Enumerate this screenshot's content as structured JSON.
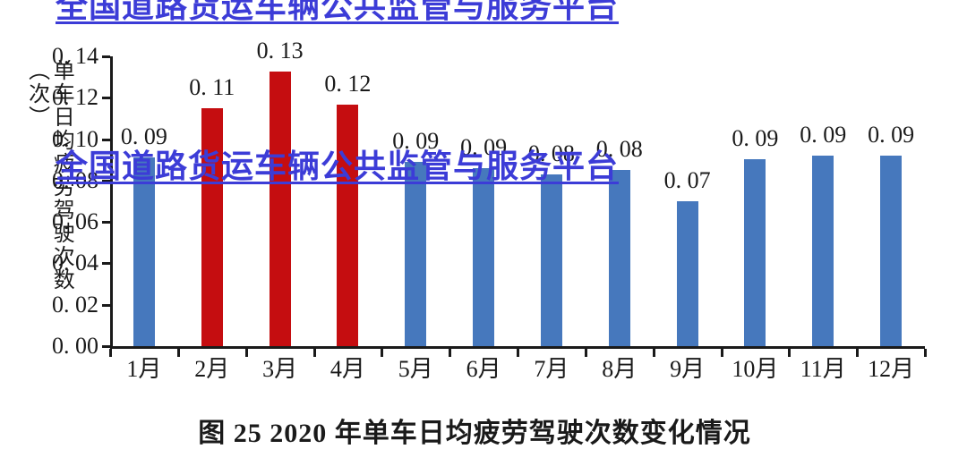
{
  "watermark": {
    "text": "全国道路货运车辆公共监管与服务平台",
    "color": "#3c3cd7"
  },
  "caption": "图 25 2020 年单车日均疲劳驾驶次数变化情况",
  "chart_data": {
    "type": "bar",
    "title": "图 25 2020 年单车日均疲劳驾驶次数变化情况",
    "xlabel": "",
    "ylabel": "单车日均疲劳驾驶次数（次）",
    "categories": [
      "1月",
      "2月",
      "3月",
      "4月",
      "5月",
      "6月",
      "7月",
      "8月",
      "9月",
      "10月",
      "11月",
      "12月"
    ],
    "values": [
      0.09,
      0.11,
      0.13,
      0.12,
      0.09,
      0.09,
      0.08,
      0.08,
      0.07,
      0.09,
      0.09,
      0.09
    ],
    "value_labels": [
      "0. 09",
      "0. 11",
      "0. 13",
      "0. 12",
      "0. 09",
      "0. 09",
      "0. 08",
      "0. 08",
      "0. 07",
      "0. 09",
      "0. 09",
      "0. 09"
    ],
    "bar_heights_as_drawn": [
      0.091,
      0.115,
      0.1325,
      0.1165,
      0.089,
      0.086,
      0.083,
      0.085,
      0.07,
      0.0905,
      0.092,
      0.092
    ],
    "red_bar_indices": [
      1,
      2,
      3
    ],
    "ylim": [
      0,
      0.14
    ],
    "ytick_step": 0.02,
    "ytick_labels": [
      "0. 00",
      "0. 02",
      "0. 04",
      "0. 06",
      "0. 08",
      "0. 10",
      "0. 12",
      "0. 14"
    ],
    "grid": false,
    "legend": null,
    "colors": {
      "bar_blue": "#4678bd",
      "bar_red": "#c50d10",
      "axis": "#1a1a1a",
      "watermark": "#3c3cd7"
    }
  }
}
